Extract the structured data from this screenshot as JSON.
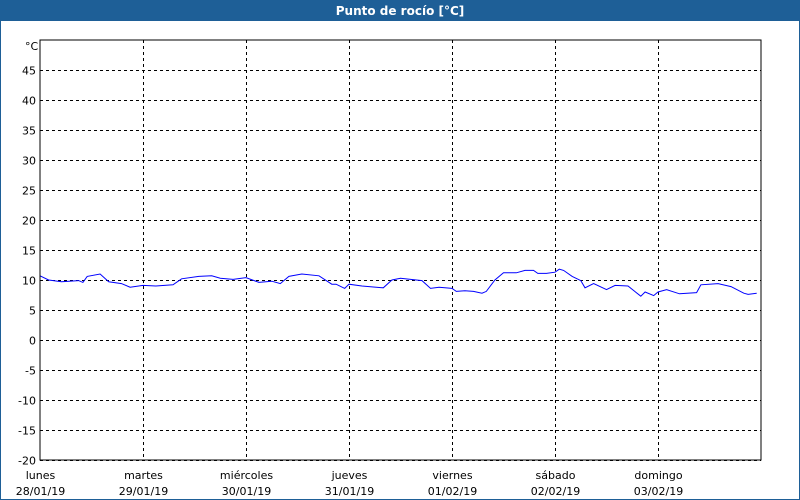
{
  "window": {
    "title": "Punto de rocío [°C]"
  },
  "chart_data": {
    "type": "line",
    "title": "Punto de rocío [°C]",
    "ylabel": "°C",
    "ylim": [
      -20,
      50
    ],
    "yticks": [
      -20,
      -15,
      -10,
      -5,
      0,
      5,
      10,
      15,
      20,
      25,
      30,
      35,
      40,
      45
    ],
    "xlim": [
      "28/01 00:00",
      "04/02 00:00"
    ],
    "xticks": [
      {
        "day": "lunes",
        "date": "28/01/19"
      },
      {
        "day": "martes",
        "date": "29/01/19"
      },
      {
        "day": "miércoles",
        "date": "30/01/19"
      },
      {
        "day": "jueves",
        "date": "31/01/19"
      },
      {
        "day": "viernes",
        "date": "01/02/19"
      },
      {
        "day": "sábado",
        "date": "02/02/19"
      },
      {
        "day": "domingo",
        "date": "03/02/19"
      }
    ],
    "grid": true,
    "line_color": "#0000ff",
    "series": [
      {
        "x": [
          "28/01 00:00",
          "28/01 02:00",
          "28/01 05:00",
          "28/01 09:00",
          "28/01 10:00",
          "28/01 11:00",
          "28/01 14:00",
          "28/01 16:00",
          "28/01 19:00",
          "28/01 21:00",
          "29/01 00:00",
          "29/01 03:00",
          "29/01 07:00",
          "29/01 09:00",
          "29/01 13:00",
          "29/01 16:00",
          "29/01 18:00",
          "29/01 21:00",
          "30/01 00:00",
          "30/01 03:00",
          "30/01 06:00",
          "30/01 08:00",
          "30/01 10:00",
          "30/01 13:00",
          "30/01 17:00",
          "30/01 20:00",
          "30/01 21:00",
          "30/01 23:00",
          "31/01 00:00",
          "31/01 03:00",
          "31/01 08:00",
          "31/01 10:00",
          "31/01 12:00",
          "31/01 17:00",
          "31/01 19:00",
          "31/01 21:00",
          "01/02 00:00",
          "01/02 01:00",
          "01/02 03:00",
          "01/02 05:00",
          "01/02 07:00",
          "01/02 08:00",
          "01/02 10:00",
          "01/02 12:00",
          "01/02 15:00",
          "01/02 17:00",
          "01/02 19:00",
          "01/02 20:00",
          "01/02 22:00",
          "02/02 00:00",
          "02/02 01:00",
          "02/02 02:00",
          "02/02 04:00",
          "02/02 06:00",
          "02/02 07:00",
          "02/02 09:00",
          "02/02 12:00",
          "02/02 14:00",
          "02/02 17:00",
          "02/02 20:00",
          "02/02 21:00",
          "02/02 23:00",
          "03/02 00:00",
          "03/02 02:00",
          "03/02 05:00",
          "03/02 09:00",
          "03/02 10:00",
          "03/02 14:00",
          "03/02 17:00",
          "03/02 20:00",
          "03/02 21:00",
          "03/02 23:00"
        ],
        "y": [
          10.7,
          10.0,
          9.7,
          9.9,
          9.6,
          10.6,
          11.0,
          9.7,
          9.4,
          8.8,
          9.1,
          9.0,
          9.2,
          10.2,
          10.6,
          10.7,
          10.3,
          10.1,
          10.4,
          9.6,
          9.8,
          9.4,
          10.6,
          11.0,
          10.7,
          9.3,
          9.3,
          8.6,
          9.3,
          9.0,
          8.7,
          10.0,
          10.3,
          9.9,
          8.6,
          8.8,
          8.6,
          8.1,
          8.2,
          8.1,
          7.8,
          8.1,
          10.0,
          11.2,
          11.2,
          11.6,
          11.6,
          11.1,
          11.1,
          11.3,
          11.8,
          11.6,
          10.6,
          9.9,
          8.7,
          9.4,
          8.4,
          9.1,
          9.0,
          7.3,
          8.0,
          7.4,
          8.0,
          8.4,
          7.7,
          7.9,
          9.2,
          9.4,
          8.9,
          7.8,
          7.6,
          7.8
        ]
      }
    ]
  }
}
